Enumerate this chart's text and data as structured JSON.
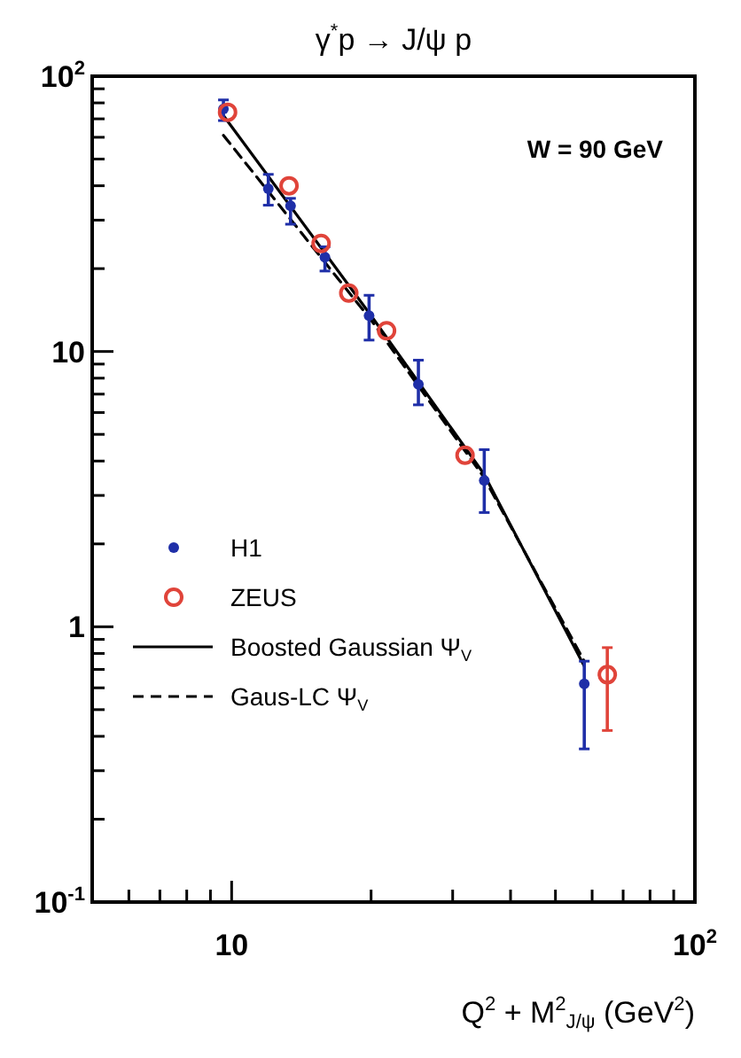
{
  "chart_data": {
    "type": "scatter",
    "title": "γ$^{*}$p → J/ψ p",
    "xlabel": "Q$^{2}$ + M$^{2}$$_{J/ψ}$  (GeV$^{2}$)",
    "log": "xy",
    "xlim": [
      5,
      100
    ],
    "ylim": [
      0.1,
      100
    ],
    "xticks": [
      {
        "value": 6,
        "label": null
      },
      {
        "value": 7,
        "label": null
      },
      {
        "value": 8,
        "label": null
      },
      {
        "value": 9,
        "label": null
      },
      {
        "value": 10,
        "label": "10"
      },
      {
        "value": 20,
        "label": null
      },
      {
        "value": 30,
        "label": null
      },
      {
        "value": 40,
        "label": null
      },
      {
        "value": 50,
        "label": null
      },
      {
        "value": 60,
        "label": null
      },
      {
        "value": 70,
        "label": null
      },
      {
        "value": 80,
        "label": null
      },
      {
        "value": 90,
        "label": null
      },
      {
        "value": 100,
        "label": "10$^{2}$"
      }
    ],
    "yticks": [
      {
        "value": 0.1,
        "label": "10$^{-1}$"
      },
      {
        "value": 0.2,
        "label": null
      },
      {
        "value": 0.3,
        "label": null
      },
      {
        "value": 0.4,
        "label": null
      },
      {
        "value": 0.5,
        "label": null
      },
      {
        "value": 0.6,
        "label": null
      },
      {
        "value": 0.7,
        "label": null
      },
      {
        "value": 0.8,
        "label": null
      },
      {
        "value": 0.9,
        "label": null
      },
      {
        "value": 1,
        "label": "1"
      },
      {
        "value": 2,
        "label": null
      },
      {
        "value": 3,
        "label": null
      },
      {
        "value": 4,
        "label": null
      },
      {
        "value": 5,
        "label": null
      },
      {
        "value": 6,
        "label": null
      },
      {
        "value": 7,
        "label": null
      },
      {
        "value": 8,
        "label": null
      },
      {
        "value": 9,
        "label": null
      },
      {
        "value": 10,
        "label": "10"
      },
      {
        "value": 20,
        "label": null
      },
      {
        "value": 30,
        "label": null
      },
      {
        "value": 40,
        "label": null
      },
      {
        "value": 50,
        "label": null
      },
      {
        "value": 60,
        "label": null
      },
      {
        "value": 70,
        "label": null
      },
      {
        "value": 80,
        "label": null
      },
      {
        "value": 90,
        "label": null
      },
      {
        "value": 100,
        "label": "10$^{2}$"
      }
    ],
    "grid": false,
    "legend": "bottom left",
    "annotations": [
      "W = 90 GeV"
    ],
    "series": [
      {
        "name": "H1",
        "marker": "circle",
        "color": "#1f2fa8",
        "x": [
          9.6,
          12.0,
          13.4,
          15.9,
          19.8,
          25.3,
          35.1,
          57.7
        ],
        "values": [
          76,
          39,
          33.8,
          22,
          13.5,
          7.6,
          3.4,
          0.62
        ],
        "errors": [
          [
            69,
            82
          ],
          [
            34,
            44
          ],
          [
            29,
            36
          ],
          [
            19.6,
            24
          ],
          [
            11,
            16
          ],
          [
            6.4,
            9.3
          ],
          [
            2.6,
            4.4
          ],
          [
            0.36,
            0.75
          ]
        ]
      },
      {
        "name": "ZEUS",
        "marker": "circle",
        "color": "#e0443a",
        "x": [
          9.8,
          13.3,
          15.6,
          17.9,
          21.6,
          31.9,
          64.7
        ],
        "values": [
          74,
          40,
          24.7,
          16.3,
          11.9,
          4.2,
          0.67
        ],
        "errors": [
          null,
          null,
          null,
          null,
          null,
          null,
          [
            0.42,
            0.84
          ]
        ]
      },
      {
        "name": "Boosted Gaussian Ψ$_{V}$",
        "type": "line",
        "line_style": "solid",
        "color": "#000000",
        "x": [
          9.6,
          20,
          35,
          57.7
        ],
        "values": [
          72,
          13.5,
          3.6,
          0.72
        ]
      },
      {
        "name": "Gaus-LC Ψ$_{V}$",
        "type": "line",
        "line_style": "dashed",
        "color": "#000000",
        "x": [
          9.6,
          20,
          35,
          57.7
        ],
        "values": [
          61,
          13,
          3.5,
          0.75
        ]
      }
    ]
  }
}
